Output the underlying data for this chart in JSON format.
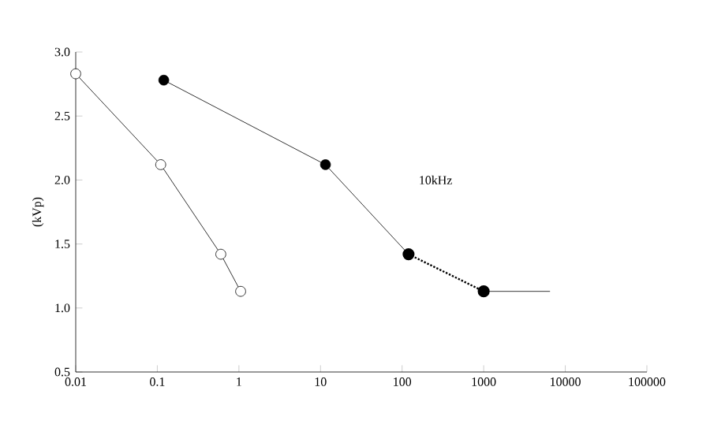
{
  "chart_data": {
    "type": "line",
    "ylabel": "(kVp)",
    "log": "x",
    "xlim": [
      0.01,
      100000
    ],
    "ylim": [
      0.5,
      3.0
    ],
    "xticks": [
      0.01,
      0.1,
      1,
      10,
      100,
      1000,
      10000,
      100000
    ],
    "yticks": [
      0.5,
      {
        "value": 1,
        "label": "1.0"
      },
      1.5,
      {
        "value": 2,
        "label": "2.0"
      },
      2.5,
      {
        "value": 3,
        "label": "3.0"
      }
    ],
    "grid": false,
    "legend": false,
    "annotations": [
      "10kHz"
    ],
    "series": [
      {
        "color": "#000000",
        "marker": "circle",
        "colors": [
          "#000000",
          "#000000",
          "#000000"
        ],
        "line_style": "solid",
        "x": [
          0.12,
          11.5,
          120
        ],
        "values": [
          2.78,
          2.12,
          1.42
        ]
      },
      {
        "color": "#000000",
        "marker": "circle",
        "colors": [
          "#000000",
          "#000000"
        ],
        "line_style": "dotted",
        "x": [
          120,
          1000
        ],
        "values": [
          1.42,
          1.13
        ]
      },
      {
        "color": "#000000",
        "marker": "none",
        "line_style": "solid",
        "x": [
          1000,
          6500
        ],
        "values": [
          1.13,
          1.13
        ]
      },
      {
        "color": "#000000",
        "marker": "circle",
        "colors": [
          "#ffffff",
          "#ffffff",
          "#ffffff",
          "#ffffff"
        ],
        "line_style": "solid",
        "x": [
          0.01,
          0.11,
          0.6,
          1.05
        ],
        "values": [
          2.83,
          2.12,
          1.42,
          1.13
        ]
      }
    ]
  }
}
